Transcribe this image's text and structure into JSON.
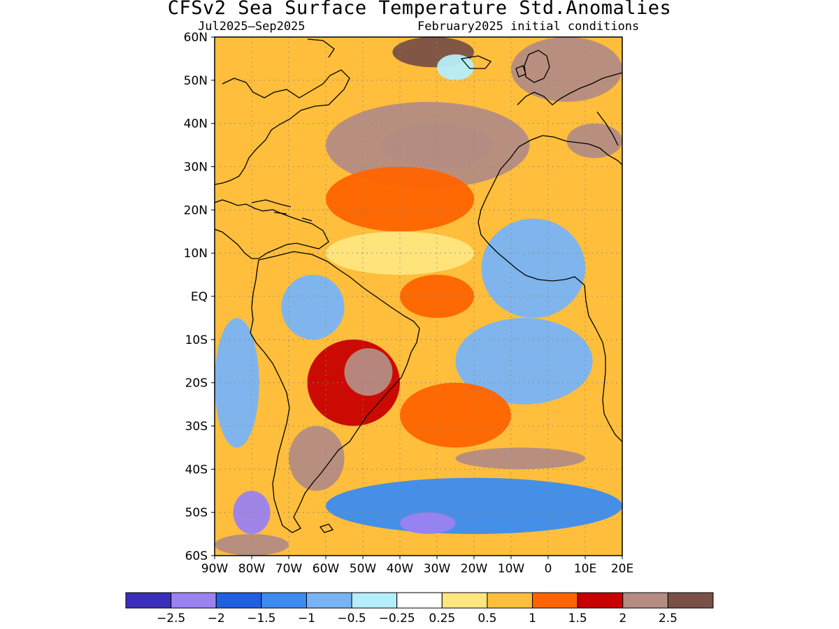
{
  "header": {
    "title": "CFSv2 Sea Surface Temperature Std.Anomalies",
    "period": "Jul2025–Sep2025",
    "initial_conditions": "February2025 initial conditions"
  },
  "chart_data": {
    "type": "heatmap",
    "title": "CFSv2 Sea Surface Temperature Std.Anomalies",
    "region": {
      "lon": [
        -90,
        20
      ],
      "lat": [
        -60,
        60
      ]
    },
    "x_ticks": [
      "90W",
      "80W",
      "70W",
      "60W",
      "50W",
      "40W",
      "30W",
      "20W",
      "10W",
      "0",
      "10E",
      "20E"
    ],
    "y_ticks": [
      "60N",
      "50N",
      "40N",
      "30N",
      "20N",
      "10N",
      "EQ",
      "10S",
      "20S",
      "30S",
      "40S",
      "50S",
      "60S"
    ],
    "colorbar": {
      "labels": [
        "−2.5",
        "−2",
        "−1.5",
        "−1",
        "−0.5",
        "−0.25",
        "0.25",
        "0.5",
        "1",
        "1.5",
        "2",
        "2.5"
      ],
      "levels": [
        -2.5,
        -2,
        -1.5,
        -1,
        -0.5,
        -0.25,
        0.25,
        0.5,
        1,
        1.5,
        2,
        2.5
      ],
      "colors": [
        "#3a2fba",
        "#9b82f0",
        "#1f5fe0",
        "#3c8cf0",
        "#78b4f5",
        "#b4eefa",
        "#ffffff",
        "#ffe680",
        "#ffbe3c",
        "#ff6400",
        "#c80000",
        "#b48c82",
        "#7a5046"
      ]
    },
    "anomaly_regions": [
      {
        "name": "north-atlantic-central-warm",
        "lon": [
          -60,
          -5
        ],
        "lat": [
          25,
          45
        ],
        "value": 2.0
      },
      {
        "name": "north-atlantic-brown-core",
        "lon": [
          -45,
          -15
        ],
        "lat": [
          30,
          40
        ],
        "value": 2.2
      },
      {
        "name": "labrador-sea-brown",
        "lon": [
          -42,
          -20
        ],
        "lat": [
          53,
          60
        ],
        "value": 2.5
      },
      {
        "name": "iceland-cool",
        "lon": [
          -30,
          -20
        ],
        "lat": [
          50,
          56
        ],
        "value": -0.5
      },
      {
        "name": "europe-north-warm",
        "lon": [
          -10,
          20
        ],
        "lat": [
          45,
          60
        ],
        "value": 2.0
      },
      {
        "name": "mediterranean-brown",
        "lon": [
          5,
          20
        ],
        "lat": [
          32,
          40
        ],
        "value": 2.3
      },
      {
        "name": "subtropical-warm",
        "lon": [
          -60,
          -20
        ],
        "lat": [
          15,
          30
        ],
        "value": 1.2
      },
      {
        "name": "tropical-atlantic-neutral",
        "lon": [
          -60,
          -20
        ],
        "lat": [
          5,
          15
        ],
        "value": 0.4
      },
      {
        "name": "guinea-current-cool",
        "lon": [
          -18,
          10
        ],
        "lat": [
          -5,
          18
        ],
        "value": -1.0
      },
      {
        "name": "southeast-tropical-cool",
        "lon": [
          -25,
          12
        ],
        "lat": [
          -25,
          -5
        ],
        "value": -0.8
      },
      {
        "name": "equatorial-strip-warm",
        "lon": [
          -40,
          -20
        ],
        "lat": [
          -5,
          5
        ],
        "value": 1.1
      },
      {
        "name": "amazon-cool",
        "lon": [
          -72,
          -55
        ],
        "lat": [
          -10,
          5
        ],
        "value": -0.9
      },
      {
        "name": "east-pacific-cool",
        "lon": [
          -90,
          -78
        ],
        "lat": [
          -35,
          -5
        ],
        "value": -0.7
      },
      {
        "name": "south-america-warm",
        "lon": [
          -65,
          -40
        ],
        "lat": [
          -30,
          -10
        ],
        "value": 1.8
      },
      {
        "name": "brazil-brown",
        "lon": [
          -55,
          -42
        ],
        "lat": [
          -23,
          -12
        ],
        "value": 2.3
      },
      {
        "name": "patagonia-brown",
        "lon": [
          -70,
          -55
        ],
        "lat": [
          -45,
          -30
        ],
        "value": 2.4
      },
      {
        "name": "south-atlantic-warm",
        "lon": [
          -40,
          -10
        ],
        "lat": [
          -35,
          -20
        ],
        "value": 1.3
      },
      {
        "name": "south-atlantic-brown-band",
        "lon": [
          -25,
          10
        ],
        "lat": [
          -40,
          -35
        ],
        "value": 2.3
      },
      {
        "name": "southern-ocean-cool",
        "lon": [
          -60,
          20
        ],
        "lat": [
          -55,
          -42
        ],
        "value": -1.2
      },
      {
        "name": "southern-ocean-violet",
        "lon": [
          -40,
          -25
        ],
        "lat": [
          -55,
          -50
        ],
        "value": -2.2
      },
      {
        "name": "chile-violet",
        "lon": [
          -85,
          -75
        ],
        "lat": [
          -55,
          -45
        ],
        "value": -2.2
      },
      {
        "name": "drake-passage-brown",
        "lon": [
          -90,
          -70
        ],
        "lat": [
          -60,
          -55
        ],
        "value": 2.3
      }
    ]
  }
}
